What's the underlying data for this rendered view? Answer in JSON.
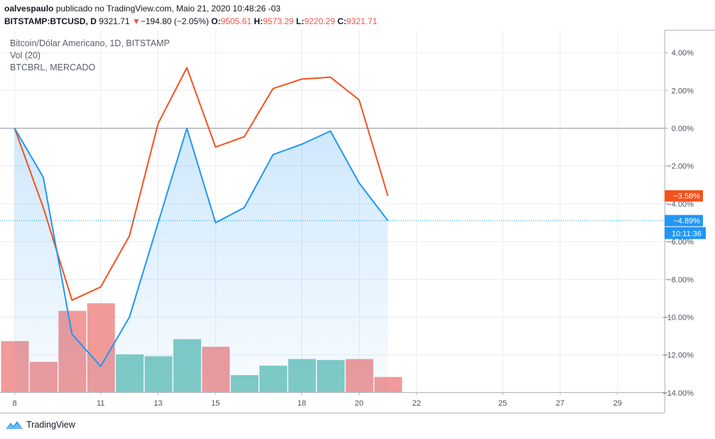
{
  "header": {
    "user": "oalvespaulo",
    "published": "publicado no TradingView.com, Maio 21, 2020 10:48:26 -03",
    "symbol": "BITSTAMP:BTCUSD, D",
    "price": "9321.71",
    "change_arrow": "▼",
    "change": "−194.80 (−2.05%)",
    "open_label": "O:",
    "open": "9505.61",
    "high_label": "H:",
    "high": "9573.29",
    "low_label": "L:",
    "low": "9220.29",
    "close_label": "C:",
    "close": "9321.71"
  },
  "legend": {
    "main": "Bitcoin/Dólar Americano, 1D, BITSTAMP",
    "volume": "Vol (20)",
    "compare": "BTCBRL, MERCADO"
  },
  "brand": {
    "name": "TradingView"
  },
  "colors": {
    "primary_line": "#2196f3",
    "compare_line": "#f4511e",
    "vol_up": "#80cbc4",
    "vol_down": "#f09a99",
    "grid": "#e9ecf2",
    "axis_text": "#4c525e"
  },
  "chart_data": {
    "type": "line",
    "x_unit": "day of May 2020",
    "x": [
      8,
      9,
      10,
      11,
      12,
      13,
      14,
      15,
      16,
      17,
      18,
      19,
      20,
      21
    ],
    "x_ticks": [
      "8",
      "11",
      "13",
      "15",
      "18",
      "20",
      "22",
      "25",
      "27",
      "29"
    ],
    "x_tick_days": [
      8,
      11,
      13,
      15,
      18,
      20,
      22,
      25,
      27,
      29
    ],
    "xlim": [
      8,
      30
    ],
    "ylim": [
      -14,
      5
    ],
    "y_ticks": [
      4,
      2,
      0,
      -2,
      -4,
      -6,
      -8,
      -10,
      -12,
      -14
    ],
    "y_tick_labels": [
      "4.00%",
      "2.00%",
      "0.00%",
      "−2.00%",
      "−4.00%",
      "−6.00%",
      "−8.00%",
      "−10.00%",
      "−12.00%",
      "−14.00%"
    ],
    "zero_line": 0,
    "series": [
      {
        "values": [
          0,
          -2.6,
          -10.9,
          -12.6,
          -10.0,
          -5.0,
          0,
          -5.0,
          -4.2,
          -1.4,
          -0.85,
          -0.15,
          -2.9,
          -4.89
        ],
        "fill": true
      },
      {
        "values": [
          0,
          -4.2,
          -9.1,
          -8.4,
          -5.7,
          0.25,
          3.2,
          -1.0,
          -0.45,
          2.1,
          2.6,
          2.7,
          1.5,
          -3.58
        ]
      }
    ],
    "last_labels": [
      "−4.89%",
      "−3.58%"
    ],
    "countdown": "10:11:36",
    "volume": {
      "values": [
        2.7,
        1.6,
        4.3,
        4.7,
        2.0,
        1.9,
        2.8,
        2.4,
        0.9,
        1.4,
        1.75,
        1.7,
        1.75,
        0.8
      ],
      "direction": [
        "down",
        "down",
        "down",
        "down",
        "up",
        "up",
        "up",
        "down",
        "up",
        "up",
        "up",
        "up",
        "down",
        "down"
      ]
    }
  }
}
